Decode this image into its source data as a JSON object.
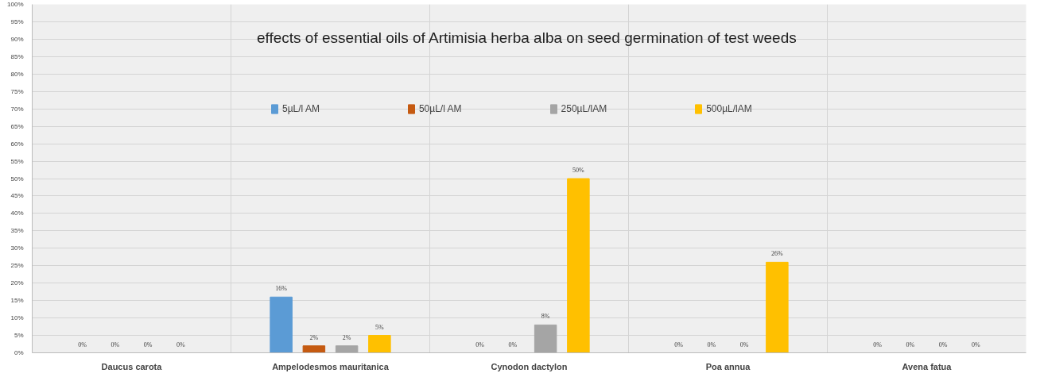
{
  "chart_data": {
    "type": "bar",
    "title": "effects of essential oils  of Artimisia herba alba on seed germination of test weeds",
    "categories": [
      "Daucus carota",
      "Ampelodesmos mauritanica",
      "Cynodon dactylon",
      "Poa annua",
      "Avena fatua"
    ],
    "series": [
      {
        "name": "5µL/l AM",
        "color": "#5b9bd5",
        "values": [
          0,
          16,
          0,
          0,
          0
        ],
        "value_labels": [
          "0%",
          "16%",
          "0%",
          "0%",
          "0%"
        ]
      },
      {
        "name": "50µL/l AM",
        "color": "#c55a11",
        "values": [
          0,
          2,
          0,
          0,
          0
        ],
        "value_labels": [
          "0%",
          "2%",
          "0%",
          "0%",
          "0%"
        ]
      },
      {
        "name": "250µL/lAM",
        "color": "#a5a5a5",
        "values": [
          0,
          2,
          8,
          0,
          0
        ],
        "value_labels": [
          "0%",
          "2%",
          "8%",
          "0%",
          "0%"
        ]
      },
      {
        "name": "500µL/lAM",
        "color": "#ffc000",
        "values": [
          0,
          5,
          50,
          26,
          0
        ],
        "value_labels": [
          "0%",
          "5%",
          "50%",
          "26%",
          "0%"
        ]
      }
    ],
    "ylim": [
      0,
      100
    ],
    "yticks": [
      {
        "value": 0,
        "label": "0%"
      },
      {
        "value": 5,
        "label": "5%"
      },
      {
        "value": 10,
        "label": "10%"
      },
      {
        "value": 15,
        "label": "15%"
      },
      {
        "value": 20,
        "label": "20%"
      },
      {
        "value": 25,
        "label": "25%"
      },
      {
        "value": 30,
        "label": "30%"
      },
      {
        "value": 35,
        "label": "35%"
      },
      {
        "value": 40,
        "label": "40%"
      },
      {
        "value": 45,
        "label": "45%"
      },
      {
        "value": 50,
        "label": "50%"
      },
      {
        "value": 55,
        "label": "55%"
      },
      {
        "value": 60,
        "label": "60%"
      },
      {
        "value": 65,
        "label": "65%"
      },
      {
        "value": 70,
        "label": "70%"
      },
      {
        "value": 75,
        "label": "75%"
      },
      {
        "value": 80,
        "label": "80%"
      },
      {
        "value": 85,
        "label": "85%"
      },
      {
        "value": 90,
        "label": "90%"
      },
      {
        "value": 95,
        "label": "95%"
      },
      {
        "value": 100,
        "label": "100%"
      }
    ],
    "grid": true,
    "legend": "top"
  }
}
